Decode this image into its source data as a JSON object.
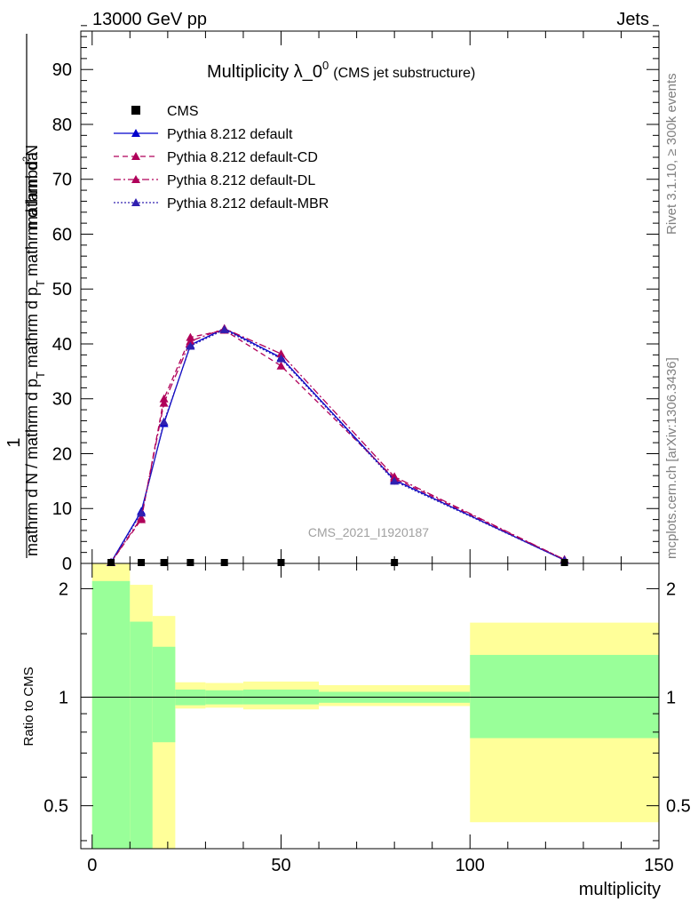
{
  "header": {
    "left": "13000 GeV pp",
    "right": "Jets"
  },
  "side_labels": {
    "rivet": "Rivet 3.1.10, ≥ 300k events",
    "mcplots": "mcplots.cern.ch [arXiv:1306.3436]"
  },
  "colors": {
    "pythia_default": "#0000cc",
    "pythia_cd": "#b0005a",
    "pythia_dl": "#b0005a",
    "pythia_mbr": "#3020b0",
    "band_inner": "#99ff99",
    "band_outer": "#ffff99",
    "data": "#000000"
  },
  "chart_data": [
    {
      "type": "line",
      "title": "Multiplicity λ_0",
      "title_superscript": "0",
      "subtitle": "(CMS jet substructure)",
      "ylabel_numerator": "1",
      "ylabel_denominator": "mathrm d N / mathrm d p",
      "ylabel_denominator_sub": "T",
      "ylabel_part2": "mathrm d p",
      "ylabel_part2_sub": "T",
      "ylabel_part3": "mathrm d lambda",
      "ylabel_top": "mathrm d",
      "ylabel_top_sup": "2",
      "ylabel_top2": "N",
      "watermark": "CMS_2021_I1920187",
      "xlim": [
        -3,
        150
      ],
      "ylim": [
        0,
        97
      ],
      "yticks": [
        0,
        10,
        20,
        30,
        40,
        50,
        60,
        70,
        80,
        90
      ],
      "ytick_labels": [
        "0",
        "10",
        "20",
        "30",
        "40",
        "50",
        "60",
        "70",
        "80",
        "90"
      ],
      "legend": [
        {
          "name": "CMS",
          "style": "marker"
        },
        {
          "name": "Pythia 8.212 default",
          "style": "solid"
        },
        {
          "name": "Pythia 8.212 default-CD",
          "style": "dashed"
        },
        {
          "name": "Pythia 8.212 default-DL",
          "style": "dashdot"
        },
        {
          "name": "Pythia 8.212 default-MBR",
          "style": "dotted"
        }
      ],
      "data_points": {
        "x": [
          5,
          13,
          19,
          26,
          35,
          50,
          80,
          125
        ],
        "y": [
          0,
          0,
          0,
          0,
          0,
          0,
          0,
          0
        ]
      },
      "series": [
        {
          "name": "Pythia 8.212 default",
          "x": [
            5,
            13,
            19,
            26,
            35,
            50,
            80,
            125
          ],
          "y": [
            0.2,
            9.5,
            25.5,
            39.8,
            42.8,
            37.5,
            15.2,
            0.6
          ]
        },
        {
          "name": "Pythia 8.212 default-CD",
          "x": [
            5,
            13,
            19,
            26,
            35,
            50,
            80,
            125
          ],
          "y": [
            0.2,
            8.0,
            30.0,
            41.2,
            42.5,
            36.0,
            15.5,
            0.7
          ]
        },
        {
          "name": "Pythia 8.212 default-DL",
          "x": [
            5,
            13,
            19,
            26,
            35,
            50,
            80,
            125
          ],
          "y": [
            0.2,
            8.3,
            29.2,
            40.5,
            42.8,
            38.2,
            15.8,
            0.7
          ]
        },
        {
          "name": "Pythia 8.212 default-MBR",
          "x": [
            5,
            13,
            19,
            26,
            35,
            50,
            80,
            125
          ],
          "y": [
            0.2,
            9.2,
            25.8,
            39.6,
            42.6,
            37.3,
            15.0,
            0.6
          ]
        }
      ]
    },
    {
      "type": "area",
      "ylabel": "Ratio to CMS",
      "xlabel": "multiplicity",
      "xlim": [
        -3,
        150
      ],
      "ylim": [
        0.38,
        2.35
      ],
      "yscale": "log",
      "yticks": [
        0.5,
        1,
        2
      ],
      "ytick_labels": [
        "0.5",
        "1",
        "2"
      ],
      "xticks": [
        0,
        50,
        100,
        150
      ],
      "xtick_labels": [
        "0",
        "50",
        "100",
        "150"
      ],
      "reference_line": 1,
      "bins": [
        {
          "x0": 0,
          "x1": 10,
          "inner_lo": 0.38,
          "inner_hi": 2.1,
          "outer_lo": 0.38,
          "outer_hi": 2.35
        },
        {
          "x0": 10,
          "x1": 16,
          "inner_lo": 0.38,
          "inner_hi": 1.62,
          "outer_lo": 0.38,
          "outer_hi": 2.05
        },
        {
          "x0": 16,
          "x1": 22,
          "inner_lo": 0.75,
          "inner_hi": 1.38,
          "outer_lo": 0.38,
          "outer_hi": 1.68
        },
        {
          "x0": 22,
          "x1": 30,
          "inner_lo": 0.95,
          "inner_hi": 1.05,
          "outer_lo": 0.93,
          "outer_hi": 1.1
        },
        {
          "x0": 30,
          "x1": 40,
          "inner_lo": 0.955,
          "inner_hi": 1.045,
          "outer_lo": 0.935,
          "outer_hi": 1.095
        },
        {
          "x0": 40,
          "x1": 60,
          "inner_lo": 0.955,
          "inner_hi": 1.05,
          "outer_lo": 0.925,
          "outer_hi": 1.105
        },
        {
          "x0": 60,
          "x1": 100,
          "inner_lo": 0.965,
          "inner_hi": 1.035,
          "outer_lo": 0.945,
          "outer_hi": 1.08
        },
        {
          "x0": 100,
          "x1": 150,
          "inner_lo": 0.77,
          "inner_hi": 1.31,
          "outer_lo": 0.45,
          "outer_hi": 1.61
        }
      ]
    }
  ]
}
